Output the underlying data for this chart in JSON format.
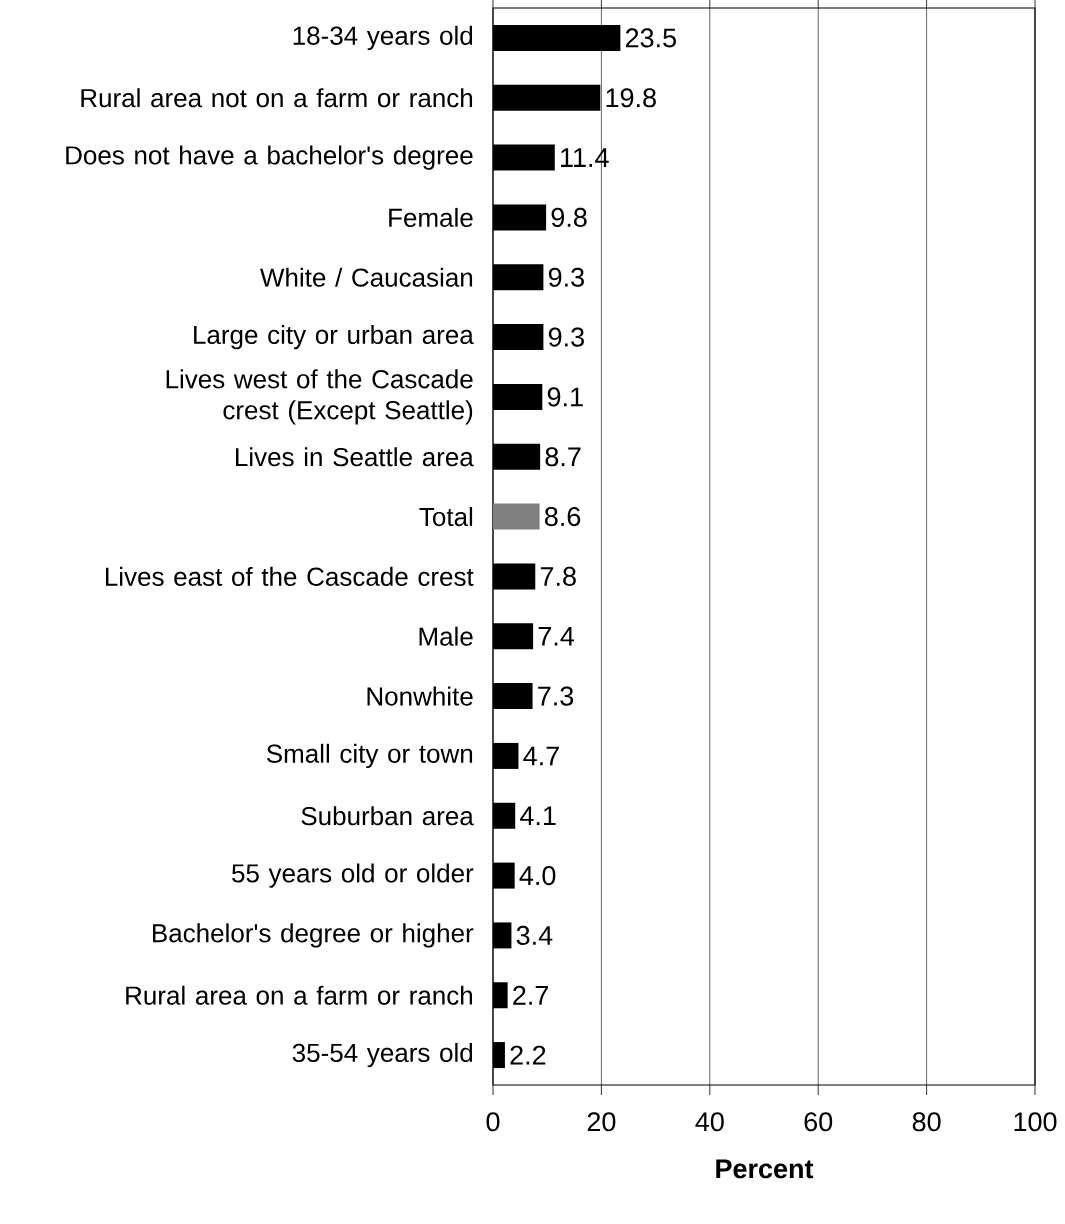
{
  "chart_data": {
    "type": "bar",
    "orientation": "horizontal",
    "xlabel": "Percent",
    "categories": [
      "18-34 years old",
      "Rural area not on a farm or ranch",
      "Does not have a bachelor's degree",
      "Female",
      "White / Caucasian",
      "Large city or urban area",
      "Lives west of the Cascade crest (Except Seattle)",
      "Lives in Seattle area",
      "Total",
      "Lives east of the Cascade crest",
      "Male",
      "Nonwhite",
      "Small city or town",
      "Suburban area",
      "55 years old or older",
      "Bachelor's degree or higher",
      "Rural area on a farm or ranch",
      "35-54 years old"
    ],
    "values": [
      23.5,
      19.8,
      11.4,
      9.8,
      9.3,
      9.3,
      9.1,
      8.7,
      8.6,
      7.8,
      7.4,
      7.3,
      4.7,
      4.1,
      4.0,
      3.4,
      2.7,
      2.2
    ],
    "value_labels": [
      "23.5",
      "19.8",
      "11.4",
      "9.8",
      "9.3",
      "9.3",
      "9.1",
      "8.7",
      "8.6",
      "7.8",
      "7.4",
      "7.3",
      "4.7",
      "4.1",
      "4.0",
      "3.4",
      "2.7",
      "2.2"
    ],
    "colors": [
      "#000000",
      "#000000",
      "#000000",
      "#000000",
      "#000000",
      "#000000",
      "#000000",
      "#000000",
      "#808080",
      "#000000",
      "#000000",
      "#000000",
      "#000000",
      "#000000",
      "#000000",
      "#000000",
      "#000000",
      "#000000"
    ],
    "xlim": [
      0,
      100
    ],
    "xticks": [
      0,
      20,
      40,
      60,
      80,
      100
    ],
    "grid": "x"
  }
}
